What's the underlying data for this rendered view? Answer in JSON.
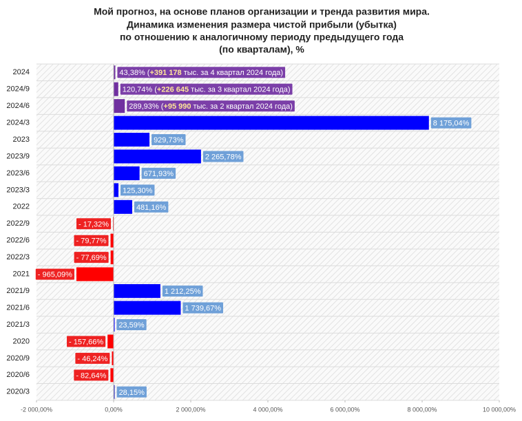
{
  "chart_data": {
    "type": "bar",
    "orientation": "horizontal",
    "title": [
      "Мой прогноз, на основе планов организации и тренда развития мира.",
      "Динамика изменения размера чистой прибыли (убытка)",
      "по отношению к аналогичному периоду предыдущего года",
      "(по кварталам), %"
    ],
    "categories": [
      "2024",
      "2024/9",
      "2024/6",
      "2024/3",
      "2023",
      "2023/9",
      "2023/6",
      "2023/3",
      "2022",
      "2022/9",
      "2022/6",
      "2022/3",
      "2021",
      "2021/9",
      "2021/6",
      "2021/3",
      "2020",
      "2020/9",
      "2020/6",
      "2020/3"
    ],
    "values": [
      43.38,
      120.74,
      289.93,
      8175.04,
      929.73,
      2265.78,
      671.93,
      125.3,
      481.16,
      -17.32,
      -79.77,
      -77.69,
      -965.09,
      1212.25,
      1739.67,
      23.59,
      -157.66,
      -46.24,
      -82.64,
      28.15
    ],
    "value_labels": [
      "43,38%",
      "120,74%",
      "289,93%",
      "8 175,04%",
      "929,73%",
      "2 265,78%",
      "671,93%",
      "125,30%",
      "481,16%",
      "- 17,32%",
      "- 79,77%",
      "- 77,69%",
      "- 965,09%",
      "1 212,25%",
      "1 739,67%",
      "23,59%",
      "- 157,66%",
      "- 46,24%",
      "- 82,64%",
      "28,15%"
    ],
    "annotations": [
      {
        "lead": " (",
        "amount": "+391 178",
        "text": " тыс. за 4 квартал 2024 года)"
      },
      {
        "lead": " (",
        "amount": "+226 645",
        "text": " тыс. за 3 квартал 2024 года)"
      },
      {
        "lead": " (",
        "amount": "+95 990",
        "text": " тыс. за 2 квартал 2024 года)"
      }
    ],
    "bar_colors": [
      "#7030a0",
      "#7030a0",
      "#7030a0",
      "#0000ff",
      "#0000ff",
      "#0000ff",
      "#0000ff",
      "#0000ff",
      "#0000ff",
      "#ff0000",
      "#ff0000",
      "#ff0000",
      "#ff0000",
      "#0000ff",
      "#0000ff",
      "#0000ff",
      "#ff0000",
      "#ff0000",
      "#ff0000",
      "#3030c0"
    ],
    "label_colors": [
      "#7b3fa8",
      "#7b3fa8",
      "#7b3fa8",
      "#6fa0d8",
      "#6fa0d8",
      "#6fa0d8",
      "#6fa0d8",
      "#6fa0d8",
      "#6fa0d8",
      "#ee2222",
      "#ee2222",
      "#ee2222",
      "#ee2222",
      "#6fa0d8",
      "#6fa0d8",
      "#6fa0d8",
      "#ee2222",
      "#ee2222",
      "#ee2222",
      "#6fa0d8"
    ],
    "xlim": [
      -2000,
      10000
    ],
    "xticks": [
      {
        "value": -2000,
        "label": "-2 000,00%"
      },
      {
        "value": 0,
        "label": "0,00%"
      },
      {
        "value": 2000,
        "label": "2 000,00%"
      },
      {
        "value": 4000,
        "label": "4 000,00%"
      },
      {
        "value": 6000,
        "label": "6 000,00%"
      },
      {
        "value": 8000,
        "label": "8 000,00%"
      },
      {
        "value": 10000,
        "label": "10 000,00%"
      }
    ]
  }
}
